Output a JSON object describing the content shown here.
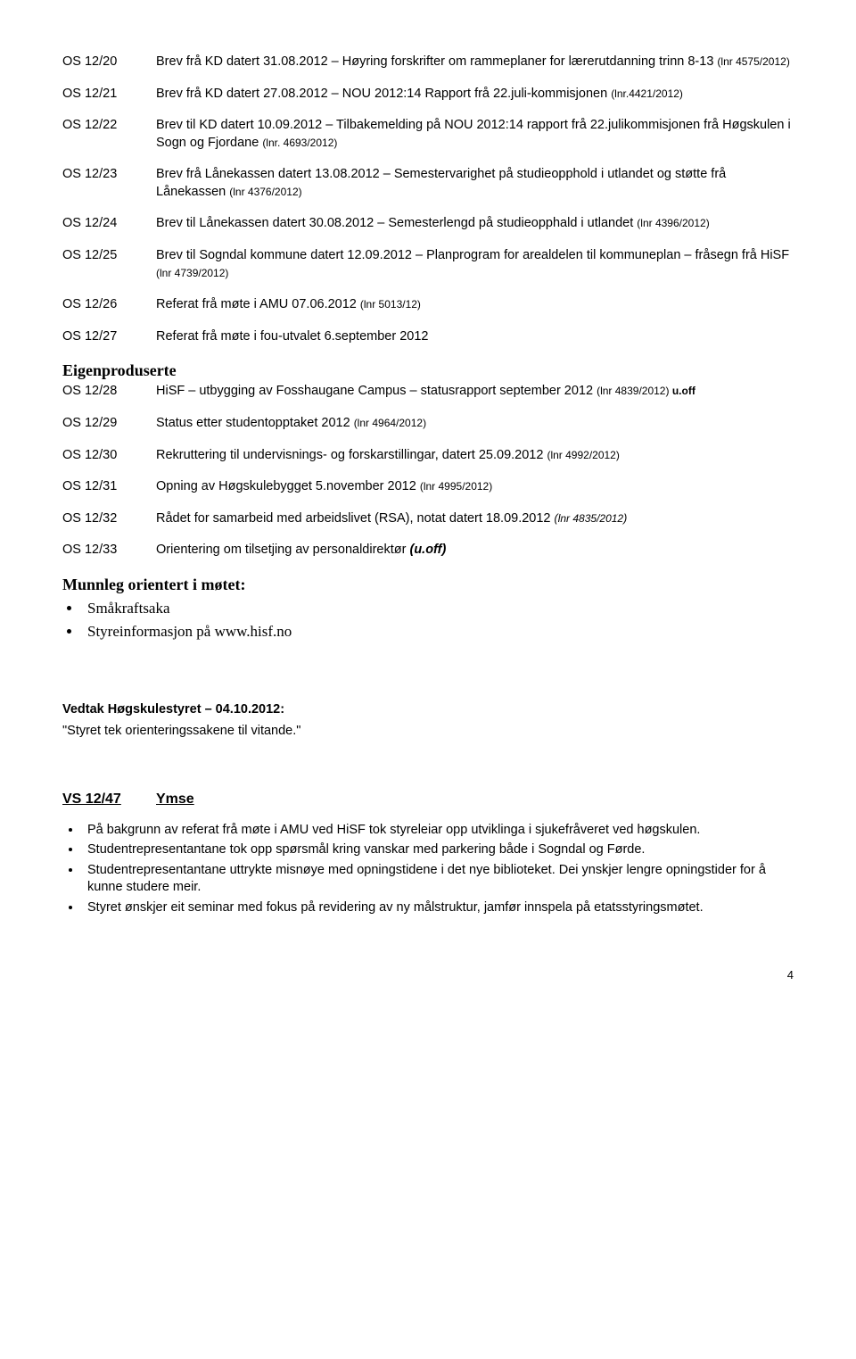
{
  "entries1": [
    {
      "code": "OS 12/20",
      "text": "Brev frå KD datert 31.08.2012 – Høyring forskrifter om rammeplaner for lærerutdanning trinn 8-13 ",
      "ref": "(lnr 4575/2012)"
    },
    {
      "code": "OS 12/21",
      "text": "Brev frå KD datert 27.08.2012 – NOU 2012:14 Rapport frå 22.juli-kommisjonen ",
      "ref": "(lnr.4421/2012)"
    },
    {
      "code": "OS 12/22",
      "text": "Brev til KD datert 10.09.2012 – Tilbakemelding på NOU 2012:14 rapport frå 22.julikommisjonen frå Høgskulen i Sogn og Fjordane ",
      "ref": "(lnr. 4693/2012)"
    },
    {
      "code": "OS 12/23",
      "text": "Brev frå Lånekassen datert 13.08.2012 – Semestervarighet på studieopphold i utlandet og støtte frå Lånekassen ",
      "ref": "(lnr 4376/2012)"
    },
    {
      "code": "OS 12/24",
      "text": "Brev til Lånekassen datert 30.08.2012 – Semesterlengd på studieopphald i utlandet ",
      "ref": "(lnr 4396/2012)"
    },
    {
      "code": "OS 12/25",
      "text": "Brev til Sogndal kommune datert 12.09.2012 – Planprogram for arealdelen til kommuneplan – fråsegn frå HiSF ",
      "ref": "(lnr 4739/2012)"
    },
    {
      "code": "OS 12/26",
      "text": "Referat frå møte i AMU 07.06.2012 ",
      "ref": "(lnr 5013/12)"
    },
    {
      "code": "OS 12/27",
      "text": "Referat frå møte i fou-utvalet 6.september 2012",
      "ref": ""
    }
  ],
  "eigen": {
    "heading": "Eigenproduserte",
    "first": {
      "code": "OS 12/28",
      "text": "HiSF – utbygging av Fosshaugane Campus – statusrapport september 2012 ",
      "ref1": "(lnr 4839/2012) ",
      "ref2": "u.off"
    },
    "rest": [
      {
        "code": "OS 12/29",
        "text": "Status etter studentopptaket 2012 ",
        "ref": "(lnr 4964/2012)"
      },
      {
        "code": "OS 12/30",
        "text": "Rekruttering til undervisnings- og forskarstillingar, datert 25.09.2012 ",
        "ref": "(lnr 4992/2012)"
      },
      {
        "code": "OS 12/31",
        "text": "Opning av Høgskulebygget 5.november 2012 ",
        "ref": "(lnr 4995/2012)"
      }
    ],
    "os32": {
      "code": "OS 12/32",
      "text": "Rådet for samarbeid med arbeidslivet (RSA), notat datert 18.09.2012 ",
      "ref1": "(",
      "ref2": "lnr 4835/2012",
      "ref3": ")"
    },
    "os33": {
      "code": "OS 12/33",
      "text": "Orientering om tilsetjing av personaldirektør ",
      "tail": "(u.off)"
    }
  },
  "munnleg": {
    "heading": "Munnleg orientert i møtet:",
    "items": [
      "Småkraftsaka",
      "Styreinformasjon på www.hisf.no"
    ]
  },
  "vedtak": {
    "heading": "Vedtak Høgskulestyret – 04.10.2012:",
    "quote": "\"Styret tek orienteringssakene til vitande.\""
  },
  "vs": {
    "code": "VS 12/47",
    "title": "Ymse",
    "items": [
      "På bakgrunn av referat frå møte i AMU ved HiSF tok styreleiar opp utviklinga i sjukefråveret ved høgskulen.",
      "Studentrepresentantane tok opp spørsmål kring vanskar med parkering både i Sogndal og Førde.",
      "Studentrepresentantane uttrykte misnøye med opningstidene i det nye biblioteket. Dei ynskjer lengre opningstider for å kunne studere meir.",
      "Styret ønskjer eit seminar med fokus på revidering av ny målstruktur, jamfør innspela på etatsstyringsmøtet."
    ]
  },
  "pageNumber": "4"
}
